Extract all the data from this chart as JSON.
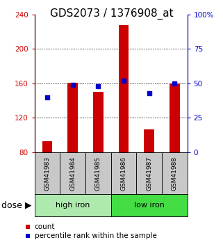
{
  "title": "GDS2073 / 1376908_at",
  "samples": [
    "GSM41983",
    "GSM41984",
    "GSM41985",
    "GSM41986",
    "GSM41987",
    "GSM41988"
  ],
  "counts": [
    93,
    161,
    150,
    228,
    107,
    160
  ],
  "percentile_ranks": [
    40,
    49,
    48,
    52,
    43,
    50
  ],
  "ymin": 80,
  "ymax": 240,
  "y2min": 0,
  "y2max": 100,
  "yticks": [
    80,
    120,
    160,
    200,
    240
  ],
  "y2ticks": [
    0,
    25,
    50,
    75,
    100
  ],
  "groups": [
    {
      "label": "high iron",
      "start": 0,
      "end": 3,
      "color": "#AEEAAE"
    },
    {
      "label": "low iron",
      "start": 3,
      "end": 6,
      "color": "#44DD44"
    }
  ],
  "bar_color": "#CC0000",
  "dot_color": "#0000CC",
  "left_tick_color": "#CC0000",
  "right_tick_color": "#0000CC",
  "title_fontsize": 11,
  "tick_label_fontsize": 7.5,
  "legend_fontsize": 7.5,
  "sample_fontsize": 6.5,
  "group_label_fontsize": 8,
  "dose_label_fontsize": 9,
  "bar_width": 0.4,
  "dot_marker_size": 18
}
